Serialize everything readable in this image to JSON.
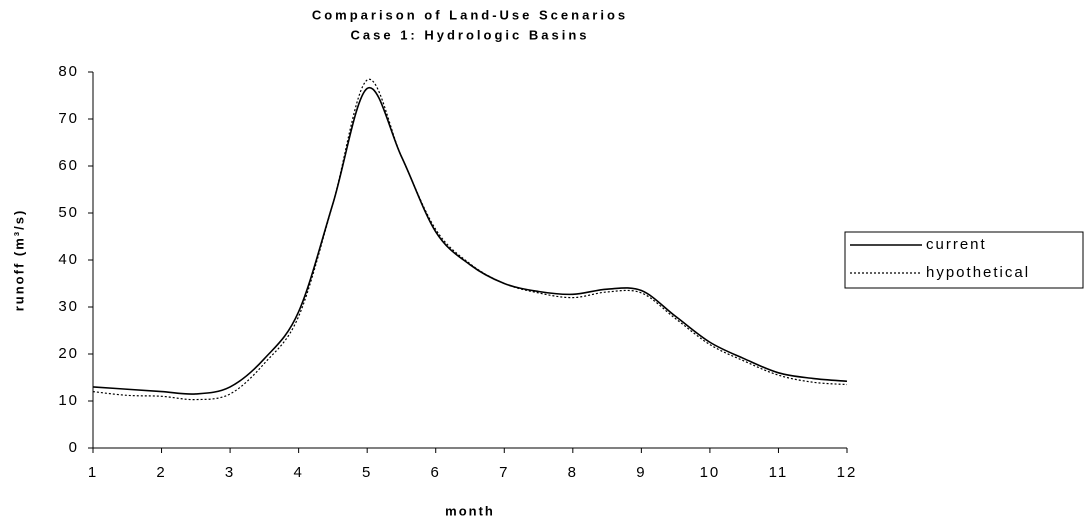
{
  "chart_data": {
    "type": "line",
    "title": "Comparison of Land-Use Scenarios",
    "subtitle": "Case 1:  Hydrologic Basins",
    "x_label": "month",
    "y_label": "runoff (m³/s)",
    "x": [
      1,
      1.5,
      2,
      2.5,
      3,
      3.5,
      4,
      4.5,
      5,
      5.5,
      6,
      6.5,
      7,
      7.5,
      8,
      8.5,
      9,
      9.5,
      10,
      10.5,
      11,
      11.5,
      12
    ],
    "series": [
      {
        "name": "current",
        "color": "#000000",
        "style": "solid",
        "values": [
          13,
          12.5,
          12,
          11.5,
          13,
          19,
          29,
          52,
          76.5,
          62,
          46,
          39,
          35,
          33.3,
          32.7,
          33.8,
          33.5,
          28,
          22.5,
          19,
          16,
          14.8,
          14.2
        ]
      },
      {
        "name": "hypothetical",
        "color": "#000000",
        "style": "dotted",
        "values": [
          12,
          11.2,
          11,
          10.3,
          11.5,
          18,
          28,
          52,
          78.3,
          62,
          46.5,
          39.2,
          35,
          33,
          32,
          33.2,
          33,
          27.5,
          22,
          18.5,
          15.5,
          14,
          13.5
        ]
      }
    ],
    "xlim": [
      1,
      12
    ],
    "xticks": [
      1,
      2,
      3,
      4,
      5,
      6,
      7,
      8,
      9,
      10,
      11,
      12
    ],
    "ylim": [
      0,
      80
    ],
    "yticks": [
      0,
      10,
      20,
      30,
      40,
      50,
      60,
      70,
      80
    ],
    "grid": false,
    "legend": "right"
  }
}
